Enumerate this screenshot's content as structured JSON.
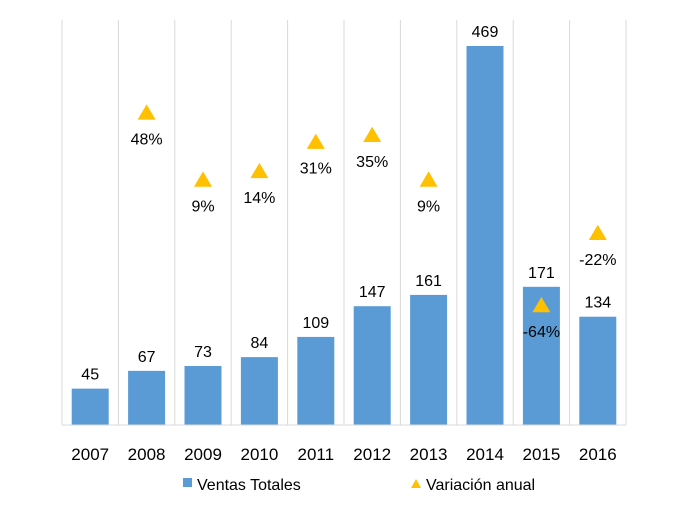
{
  "chart_data": {
    "type": "bar",
    "categories": [
      "2007",
      "2008",
      "2009",
      "2010",
      "2011",
      "2012",
      "2013",
      "2014",
      "2015",
      "2016"
    ],
    "series": [
      {
        "name": "Ventas Totales",
        "type": "bar",
        "values": [
          45,
          67,
          73,
          84,
          109,
          147,
          161,
          469,
          171,
          134
        ],
        "labels": [
          "45",
          "67",
          "73",
          "84",
          "109",
          "147",
          "161",
          "469",
          "171",
          "134"
        ],
        "color": "#5B9BD5"
      },
      {
        "name": "Variación anual",
        "type": "scatter",
        "marker": "triangle",
        "values": [
          null,
          48,
          9,
          14,
          31,
          35,
          9,
          null,
          -64,
          -22
        ],
        "labels": [
          "",
          "48%",
          "9%",
          "14%",
          "31%",
          "35%",
          "9%",
          "",
          "-64%",
          "-22%"
        ],
        "color": "#FFC000"
      }
    ],
    "title": "",
    "xlabel": "",
    "ylabel": "",
    "grid": "vertical",
    "legend": "bottom"
  }
}
